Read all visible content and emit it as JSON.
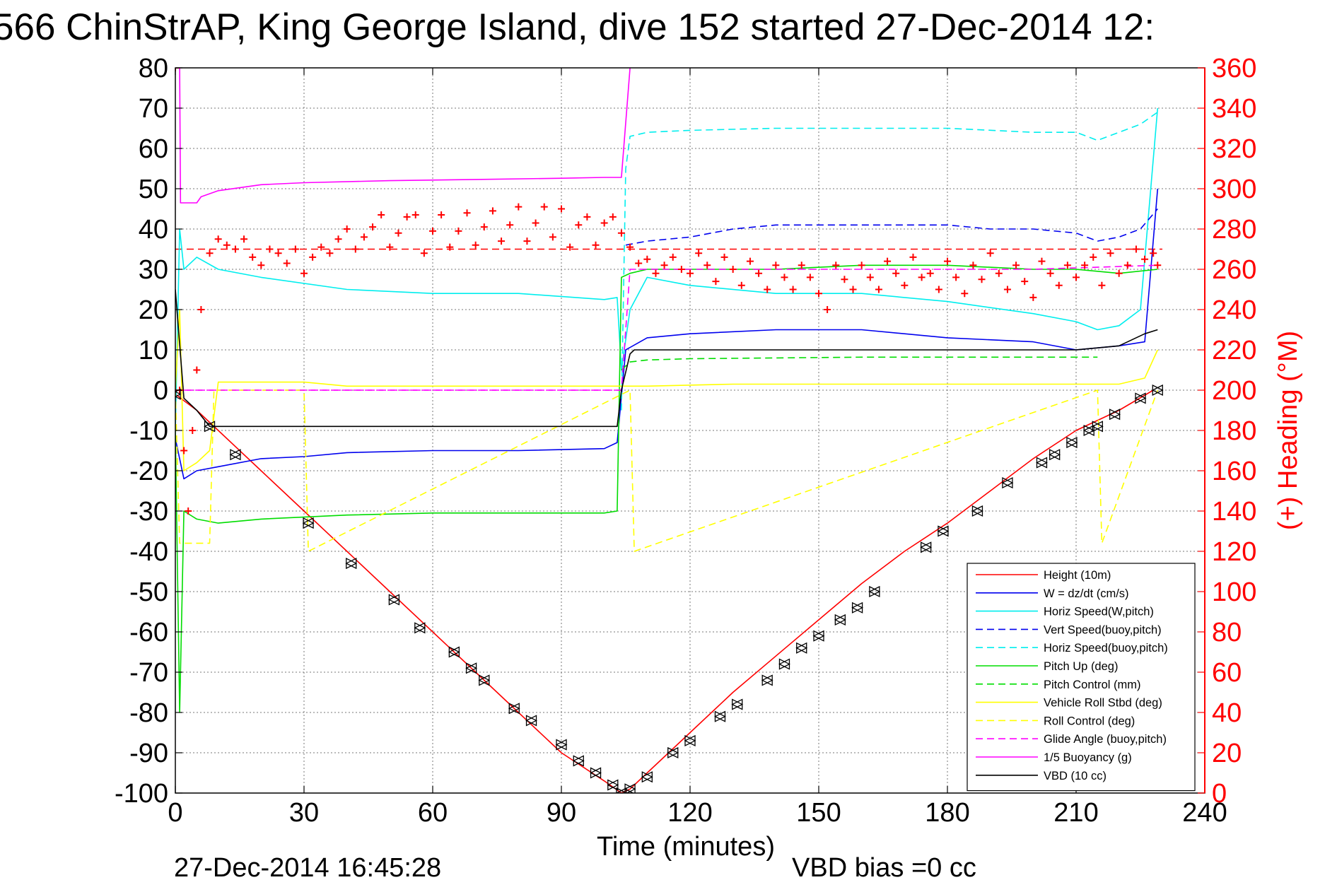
{
  "chart_data": {
    "type": "line",
    "title": "566 ChinStrAP, King George Island, dive 152 started 27-Dec-2014 12:",
    "xlabel": "Time (minutes)",
    "ylabel": "",
    "y2label": "(+) Heading (°M)",
    "xlim": [
      0,
      240
    ],
    "ylim": [
      -100,
      80
    ],
    "y2lim": [
      0,
      360
    ],
    "xticks": [
      0,
      30,
      60,
      90,
      120,
      150,
      180,
      210,
      240
    ],
    "yticks": [
      80,
      70,
      60,
      50,
      40,
      30,
      20,
      10,
      0,
      -10,
      -20,
      -30,
      -40,
      -50,
      -60,
      -70,
      -80,
      -90,
      -100
    ],
    "y2ticks": [
      360,
      340,
      320,
      300,
      280,
      260,
      240,
      220,
      200,
      180,
      160,
      140,
      120,
      100,
      80,
      60,
      40,
      20,
      0
    ],
    "grid": true,
    "legend_position": "bottom-right",
    "footer_left": "27-Dec-2014 16:45:28",
    "footer_right": "VBD bias =0 cc",
    "colors": {
      "height": "#ff0000",
      "w": "#0000ee",
      "horiz_speed": "#00eeee",
      "pitch": "#00dd00",
      "roll": "#ffff00",
      "glide": "#ff00ff",
      "buoyancy": "#ff00ff",
      "vbd": "#000000",
      "heading": "#ff0000",
      "right_axis": "#ff0000"
    },
    "series": [
      {
        "name": "Height (10m)",
        "color": "#ff0000",
        "dash": "solid",
        "x": [
          0,
          5,
          10,
          20,
          30,
          40,
          50,
          60,
          70,
          80,
          90,
          100,
          104,
          106,
          110,
          120,
          130,
          140,
          150,
          160,
          170,
          180,
          190,
          200,
          210,
          220,
          228
        ],
        "y": [
          -1,
          -5,
          -10,
          -20,
          -30,
          -40,
          -50,
          -60,
          -70,
          -80,
          -90,
          -97,
          -100,
          -99,
          -95,
          -85,
          -75,
          -66,
          -57,
          -48,
          -40,
          -33,
          -25,
          -17,
          -10,
          -5,
          0
        ]
      },
      {
        "name": "W = dz/dt (cm/s)",
        "color": "#0000ee",
        "dash": "solid",
        "x": [
          0,
          2,
          5,
          10,
          20,
          30,
          40,
          60,
          80,
          100,
          103,
          105,
          110,
          120,
          140,
          160,
          180,
          200,
          210,
          220,
          226,
          229
        ],
        "y": [
          -12,
          -22,
          -20,
          -19,
          -17,
          -16.5,
          -15.5,
          -15,
          -15,
          -14.5,
          -13,
          10,
          13,
          14,
          15,
          15,
          13,
          12,
          10,
          11,
          12,
          50
        ]
      },
      {
        "name": "Horiz Speed(W,pitch)",
        "color": "#00eeee",
        "dash": "solid",
        "x": [
          0,
          1,
          2,
          5,
          10,
          20,
          40,
          60,
          80,
          100,
          103,
          104,
          106,
          110,
          120,
          140,
          160,
          180,
          200,
          210,
          215,
          220,
          225,
          229
        ],
        "y": [
          -10,
          40,
          30,
          33,
          30,
          28,
          25,
          24,
          24,
          22.5,
          23,
          5,
          20,
          28,
          26,
          24,
          24,
          22,
          19,
          17,
          15,
          16,
          20,
          70
        ]
      },
      {
        "name": "Vert Speed(buoy,pitch)",
        "color": "#0000ee",
        "dash": "dashed",
        "x": [
          105,
          110,
          120,
          130,
          140,
          150,
          160,
          170,
          180,
          190,
          200,
          210,
          215,
          220,
          225,
          229
        ],
        "y": [
          36,
          37,
          38,
          40,
          41,
          41,
          41,
          41,
          41,
          40,
          40,
          39,
          37,
          38,
          40,
          45
        ]
      },
      {
        "name": "Horiz Speed(buoy,pitch)",
        "color": "#00eeee",
        "dash": "dashed",
        "x": [
          104,
          105,
          106,
          110,
          120,
          140,
          160,
          180,
          200,
          210,
          215,
          220,
          225,
          229
        ],
        "y": [
          -5,
          55,
          63,
          64,
          64.5,
          65,
          65,
          65,
          64,
          64,
          62,
          64,
          66,
          69
        ]
      },
      {
        "name": "Pitch Up (deg)",
        "color": "#00dd00",
        "dash": "solid",
        "x": [
          0,
          1,
          2,
          5,
          10,
          20,
          40,
          60,
          80,
          100,
          103,
          104,
          106,
          110,
          120,
          140,
          160,
          180,
          200,
          210,
          220,
          229
        ],
        "y": [
          -10,
          -80,
          -30,
          -32,
          -33,
          -32,
          -31,
          -30.5,
          -30.5,
          -30.5,
          -30,
          28,
          29,
          30,
          30,
          30,
          31,
          31,
          30,
          30,
          29,
          30
        ]
      },
      {
        "name": "Pitch Control (mm)",
        "color": "#00dd00",
        "dash": "dashed",
        "x": [
          104,
          106,
          110,
          120,
          140,
          160,
          180,
          200,
          215
        ],
        "y": [
          5,
          7,
          7.5,
          7.8,
          8,
          8.2,
          8.2,
          8.2,
          8.2
        ]
      },
      {
        "name": "Vehicle Roll Stbd (deg)",
        "color": "#ffff00",
        "dash": "solid",
        "x": [
          0,
          1,
          2,
          5,
          8,
          10,
          30,
          40,
          60,
          80,
          100,
          103,
          106,
          110,
          130,
          150,
          170,
          190,
          210,
          220,
          226,
          229
        ],
        "y": [
          0,
          20,
          -20,
          -18,
          -15,
          2,
          2,
          1,
          1,
          1,
          1,
          1,
          1,
          1,
          1.5,
          1.5,
          1.5,
          1.5,
          1.5,
          1.5,
          3,
          10
        ]
      },
      {
        "name": "Roll Control (deg)",
        "color": "#ffff00",
        "dash": "dashed",
        "x": [
          0,
          1,
          2,
          8,
          9,
          30,
          31,
          106,
          107,
          215,
          216,
          229
        ],
        "y": [
          0,
          -38,
          -38,
          -38,
          0,
          0,
          -40,
          0,
          -40,
          0,
          -38,
          0
        ]
      },
      {
        "name": "Glide Angle (buoy,pitch)",
        "color": "#ff00ff",
        "dash": "dashed",
        "x": [
          0,
          2,
          5,
          60,
          100,
          104,
          106,
          120,
          160,
          200,
          229
        ],
        "y": [
          0,
          0,
          0,
          0,
          0,
          0,
          30,
          30,
          30,
          30,
          31
        ]
      },
      {
        "name": "1/5 Buoyancy (g)",
        "color": "#ff00ff",
        "dash": "solid",
        "x": [
          0,
          1,
          1.2,
          5,
          6,
          10,
          20,
          30,
          50,
          70,
          90,
          100,
          102,
          103,
          104,
          106
        ],
        "y": [
          80,
          80,
          46.5,
          46.5,
          48,
          49.5,
          51,
          51.5,
          52,
          52.3,
          52.6,
          52.8,
          52.8,
          52.8,
          52.8,
          80
        ]
      },
      {
        "name": "VBD (10 cc)",
        "color": "#000000",
        "dash": "solid",
        "x": [
          0,
          2,
          5,
          8,
          9,
          50,
          100,
          103,
          104,
          106,
          107,
          150,
          200,
          210,
          220,
          226,
          229
        ],
        "y": [
          25,
          -2,
          -5,
          -9,
          -9,
          -9,
          -9,
          -9,
          0,
          9,
          10,
          10,
          10,
          10,
          11,
          14,
          15
        ]
      }
    ],
    "reference_lines": {
      "red_dashed_right_axis_value": 270,
      "magenta_dashed_left_axis_value": 0
    },
    "heading": {
      "axis": "right",
      "color": "#ff0000",
      "marker": "plus",
      "x": [
        0,
        1,
        2,
        3,
        4,
        5,
        6,
        8,
        10,
        12,
        14,
        16,
        18,
        20,
        22,
        24,
        26,
        28,
        30,
        32,
        34,
        36,
        38,
        40,
        42,
        44,
        46,
        48,
        50,
        52,
        54,
        56,
        58,
        60,
        62,
        64,
        66,
        68,
        70,
        72,
        74,
        76,
        78,
        80,
        82,
        84,
        86,
        88,
        90,
        92,
        94,
        96,
        98,
        100,
        102,
        104,
        106,
        108,
        110,
        112,
        114,
        116,
        118,
        120,
        122,
        124,
        126,
        128,
        130,
        132,
        134,
        136,
        138,
        140,
        142,
        144,
        146,
        148,
        150,
        152,
        154,
        156,
        158,
        160,
        162,
        164,
        166,
        168,
        170,
        172,
        174,
        176,
        178,
        180,
        182,
        184,
        186,
        188,
        190,
        192,
        194,
        196,
        198,
        200,
        202,
        204,
        206,
        208,
        210,
        212,
        214,
        216,
        218,
        220,
        222,
        224,
        226,
        228,
        229
      ],
      "y": [
        360,
        200,
        170,
        140,
        180,
        210,
        240,
        268,
        275,
        272,
        270,
        275,
        266,
        262,
        270,
        268,
        263,
        270,
        258,
        266,
        271,
        268,
        275,
        280,
        270,
        276,
        281,
        287,
        271,
        278,
        286,
        287,
        268,
        279,
        287,
        271,
        279,
        288,
        272,
        281,
        289,
        274,
        282,
        291,
        274,
        283,
        291,
        276,
        290,
        271,
        282,
        286,
        272,
        283,
        286,
        278,
        271,
        263,
        265,
        258,
        262,
        266,
        260,
        258,
        268,
        262,
        254,
        266,
        260,
        252,
        264,
        258,
        250,
        262,
        256,
        250,
        262,
        256,
        248,
        240,
        262,
        255,
        250,
        262,
        256,
        250,
        264,
        258,
        252,
        266,
        256,
        258,
        250,
        264,
        256,
        248,
        262,
        255,
        268,
        258,
        250,
        262,
        254,
        246,
        264,
        258,
        252,
        262,
        256,
        262,
        266,
        252,
        268,
        258,
        262,
        270,
        265,
        268,
        262
      ]
    },
    "depth_markers": {
      "axis": "left",
      "color": "#000000",
      "x": [
        0,
        8,
        14,
        31,
        41,
        51,
        57,
        65,
        69,
        72,
        79,
        83,
        90,
        94,
        98,
        102,
        104,
        106,
        110,
        116,
        120,
        127,
        131,
        138,
        142,
        146,
        150,
        155,
        159,
        163,
        175,
        179,
        187,
        194,
        202,
        205,
        209,
        213,
        215,
        219,
        225,
        229
      ],
      "y": [
        -1,
        -9,
        -16,
        -33,
        -43,
        -52,
        -59,
        -65,
        -69,
        -72,
        -79,
        -82,
        -88,
        -92,
        -95,
        -98,
        -100,
        -99,
        -96,
        -90,
        -87,
        -81,
        -78,
        -72,
        -68,
        -64,
        -61,
        -57,
        -54,
        -50,
        -39,
        -35,
        -30,
        -23,
        -18,
        -16,
        -13,
        -10,
        -9,
        -6,
        -2,
        0
      ]
    }
  }
}
